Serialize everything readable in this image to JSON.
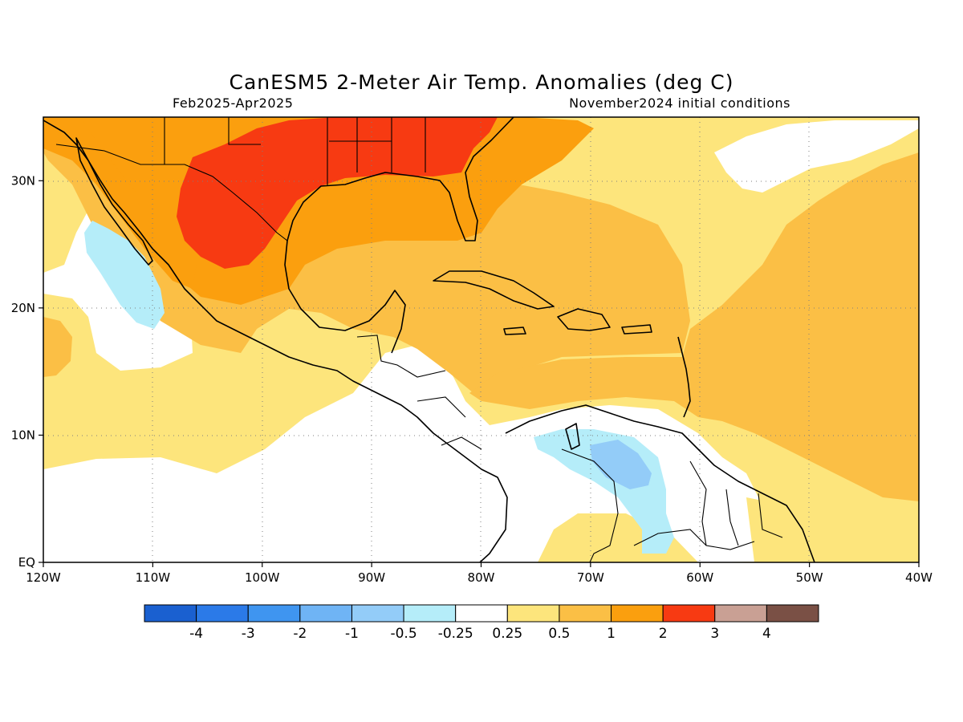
{
  "header": {
    "title": "CanESM5 2-Meter Air Temp. Anomalies (deg C)",
    "period": "Feb2025-Apr2025",
    "init": "November2024 initial conditions"
  },
  "map": {
    "lon_range": [
      -120,
      -40
    ],
    "lat_range": [
      0,
      35
    ],
    "lon_ticks": [
      {
        "lon": -120,
        "label": "120W"
      },
      {
        "lon": -110,
        "label": "110W"
      },
      {
        "lon": -100,
        "label": "100W"
      },
      {
        "lon": -90,
        "label": "90W"
      },
      {
        "lon": -80,
        "label": "80W"
      },
      {
        "lon": -70,
        "label": "70W"
      },
      {
        "lon": -60,
        "label": "60W"
      },
      {
        "lon": -50,
        "label": "50W"
      },
      {
        "lon": -40,
        "label": "40W"
      }
    ],
    "lat_ticks": [
      {
        "lat": 0,
        "label": "EQ"
      },
      {
        "lat": 10,
        "label": "10N"
      },
      {
        "lat": 20,
        "label": "20N"
      },
      {
        "lat": 30,
        "label": "30N"
      }
    ],
    "grid": true
  },
  "colorbar": {
    "colors": [
      "#1a60d0",
      "#2b7ae8",
      "#3f95f0",
      "#6fb4f5",
      "#93ccf8",
      "#b5edf9",
      "#ffffff",
      "#fde57c",
      "#fbbf45",
      "#fb9f0e",
      "#f73a12",
      "#c9a094",
      "#7a5045"
    ],
    "labels": [
      "-4",
      "-3",
      "-2",
      "-1",
      "-0.5",
      "-0.25",
      "0.25",
      "0.5",
      "1",
      "2",
      "3",
      "4"
    ]
  }
}
